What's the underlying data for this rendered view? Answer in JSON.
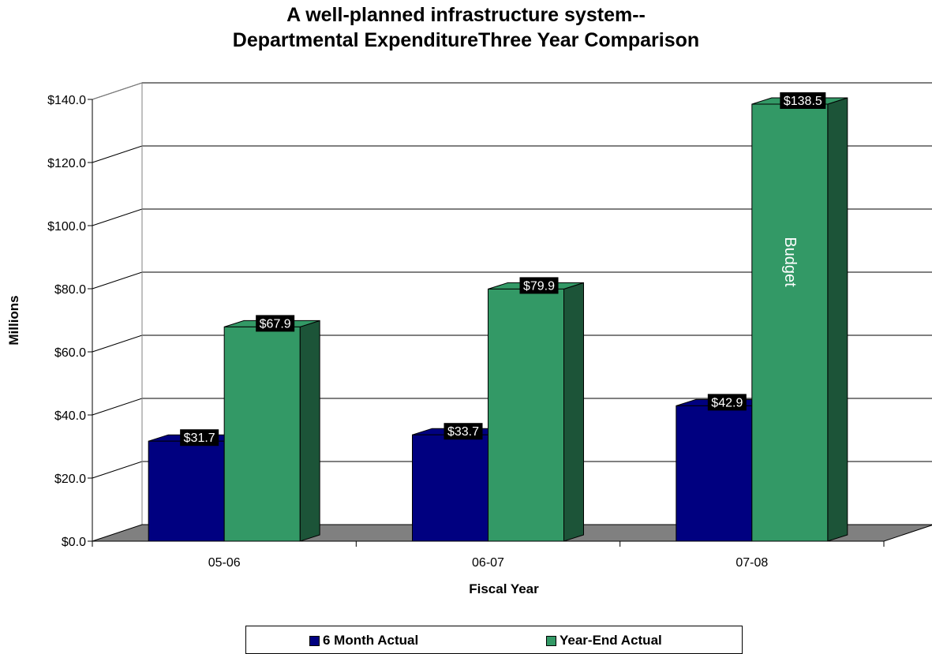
{
  "chart_data": {
    "type": "bar",
    "title_line1": "A well-planned infrastructure system--",
    "title_line2": "Departmental ExpenditureThree Year Comparison",
    "xlabel": "Fiscal Year",
    "ylabel": "Millions",
    "categories": [
      "05-06",
      "06-07",
      "07-08"
    ],
    "ylim": [
      0,
      140
    ],
    "yticks": [
      0,
      20,
      40,
      60,
      80,
      100,
      120,
      140
    ],
    "ytick_labels": [
      "$0.0",
      "$20.0",
      "$40.0",
      "$60.0",
      "$80.0",
      "$100.0",
      "$120.0",
      "$140.0"
    ],
    "grid": true,
    "three_d": true,
    "legend_position": "bottom",
    "series": [
      {
        "name": "6 Month Actual",
        "color": "#000080",
        "values": [
          31.7,
          33.7,
          42.9
        ],
        "data_labels": [
          "$31.7",
          "$33.7",
          "$42.9"
        ]
      },
      {
        "name": "Year-End Actual",
        "color": "#339966",
        "values": [
          67.9,
          79.9,
          138.5
        ],
        "data_labels": [
          "$67.9",
          "$79.9",
          "$138.5"
        ]
      }
    ],
    "annotations": [
      {
        "text": "Budget",
        "series": "Year-End Actual",
        "category": "07-08"
      }
    ]
  }
}
